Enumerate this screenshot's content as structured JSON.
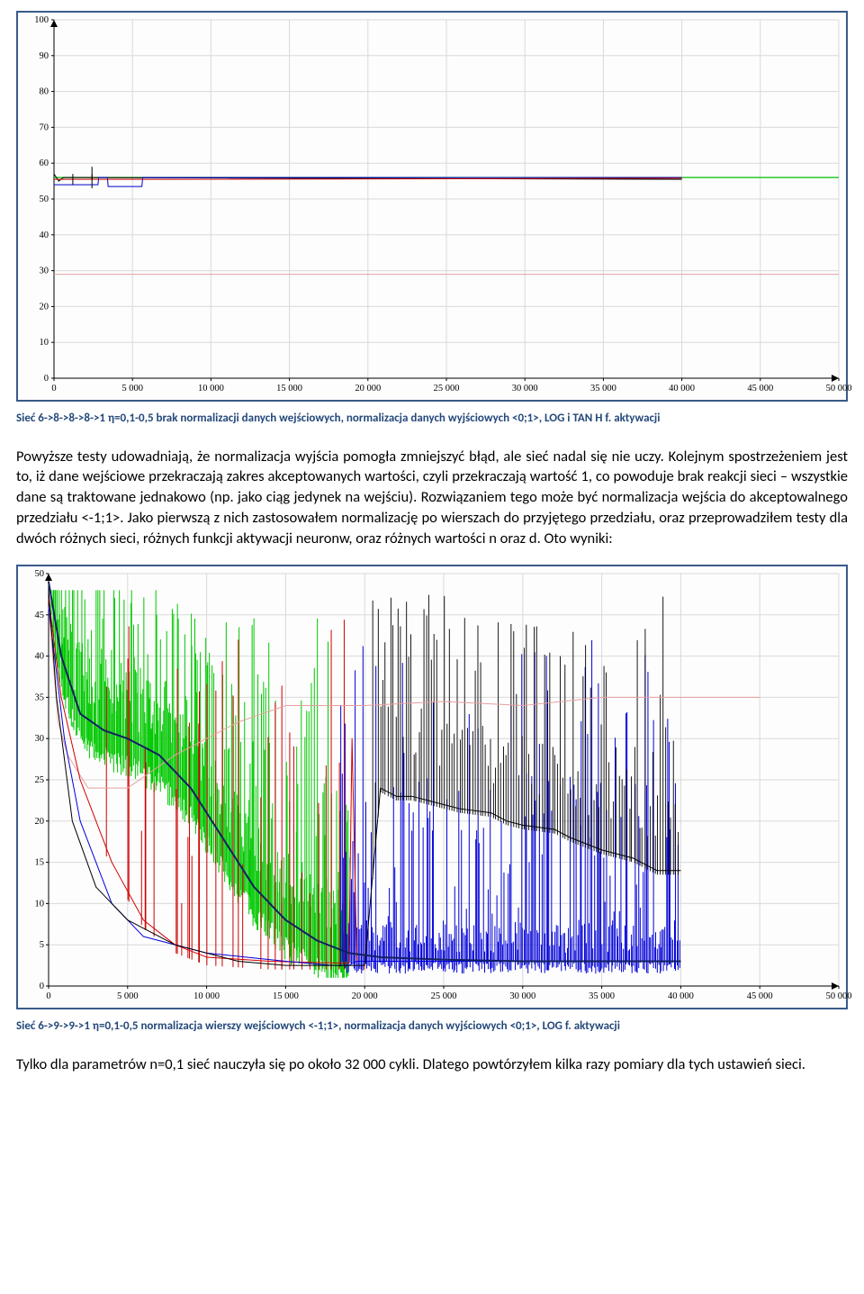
{
  "chart1": {
    "type": "line",
    "xlim": [
      0,
      50000
    ],
    "ylim": [
      0,
      100
    ],
    "xtick_step": 5000,
    "ytick_step": 10,
    "xticks": [
      "0",
      "5 000",
      "10 000",
      "15 000",
      "20 000",
      "25 000",
      "30 000",
      "35 000",
      "40 000",
      "45 000",
      "50 000"
    ],
    "yticks": [
      "0",
      "10",
      "20",
      "30",
      "40",
      "50",
      "60",
      "70",
      "80",
      "90",
      "100"
    ],
    "background_color": "#ffffff",
    "grid_color": "#d9d9d9",
    "axis_color": "#000000",
    "label_fontsize": 10.5,
    "series": [
      {
        "name": "green-main",
        "color": "#00c000",
        "width": 1.2,
        "points": [
          [
            0,
            56
          ],
          [
            50000,
            56
          ]
        ]
      },
      {
        "name": "black",
        "color": "#000000",
        "width": 1,
        "points": [
          [
            0,
            57
          ],
          [
            300,
            55
          ],
          [
            600,
            56
          ],
          [
            1800,
            56
          ],
          [
            40000,
            55.5
          ]
        ]
      },
      {
        "name": "blue",
        "color": "#0000d0",
        "width": 1,
        "points": [
          [
            0,
            54
          ],
          [
            2800,
            54
          ],
          [
            2850,
            56
          ],
          [
            3400,
            56
          ],
          [
            3450,
            53.5
          ],
          [
            5600,
            53.5
          ],
          [
            5650,
            56
          ],
          [
            40000,
            56
          ]
        ]
      },
      {
        "name": "red",
        "color": "#d00000",
        "width": 1,
        "points": [
          [
            0,
            55.5
          ],
          [
            2400,
            55.5
          ],
          [
            2420,
            57
          ],
          [
            2440,
            55.5
          ],
          [
            8000,
            55.5
          ],
          [
            40000,
            55.8
          ]
        ]
      },
      {
        "name": "pink-low",
        "color": "#e8a0a0",
        "width": 1,
        "points": [
          [
            0,
            29
          ],
          [
            50000,
            29
          ]
        ]
      },
      {
        "name": "vbar1",
        "color": "#000000",
        "width": 1,
        "points": [
          [
            2420,
            53
          ],
          [
            2420,
            59
          ]
        ]
      },
      {
        "name": "vbar2",
        "color": "#000000",
        "width": 1,
        "points": [
          [
            1200,
            54
          ],
          [
            1200,
            57
          ]
        ]
      }
    ]
  },
  "caption1": "Sieć 6->8->8->8->1    η=0,1-0,5 brak normalizacji danych wejściowych, normalizacja danych wyjściowych <0;1>, LOG i TAN H f. aktywacji",
  "para1": "Powyższe testy udowadniają, że normalizacja wyjścia pomogła zmniejszyć błąd, ale sieć nadal się nie uczy. Kolejnym spostrzeżeniem jest to, iż dane wejściowe przekraczają zakres akceptowanych wartości, czyli przekraczają wartość 1, co powoduje brak reakcji sieci – wszystkie dane są traktowane jednakowo (np. jako ciąg jedynek na wejściu). Rozwiązaniem tego może być normalizacja wejścia do akceptowalnego przedziału <-1;1>. Jako pierwszą z nich zastosowałem normalizację po wierszach do przyjętego przedziału, oraz przeprowadziłem testy dla dwóch różnych sieci, różnych funkcji aktywacji neuronw, oraz różnych wartości n oraz d. Oto wyniki:",
  "chart2": {
    "type": "line",
    "xlim": [
      0,
      50000
    ],
    "ylim": [
      0,
      50
    ],
    "xtick_step": 5000,
    "ytick_step": 5,
    "xticks": [
      "0",
      "5 000",
      "10 000",
      "15 000",
      "20 000",
      "25 000",
      "30 000",
      "35 000",
      "40 000",
      "45 000",
      "50 000"
    ],
    "yticks": [
      "0",
      "5",
      "10",
      "15",
      "20",
      "25",
      "30",
      "35",
      "40",
      "45",
      "50"
    ],
    "background_color": "#ffffff",
    "grid_color": "#d9d9d9",
    "axis_color": "#000000",
    "label_fontsize": 10.5,
    "series_colors": {
      "green": "#00c800",
      "blue": "#0000d8",
      "black": "#000000",
      "red": "#d00000",
      "pink": "#e8a0a0",
      "navy": "#102060"
    },
    "pink_series": {
      "color": "#e8a0a0",
      "width": 1,
      "points": [
        [
          0,
          46
        ],
        [
          600,
          32
        ],
        [
          1200,
          28
        ],
        [
          2500,
          24
        ],
        [
          5000,
          24
        ],
        [
          8000,
          28
        ],
        [
          12000,
          32
        ],
        [
          15000,
          34
        ],
        [
          20000,
          34
        ],
        [
          25000,
          34.5
        ],
        [
          30000,
          34
        ],
        [
          35000,
          35
        ],
        [
          38000,
          35
        ],
        [
          40000,
          35
        ],
        [
          45000,
          35
        ]
      ]
    },
    "black_base": {
      "color": "#000000",
      "width": 1,
      "points": [
        [
          0,
          48
        ],
        [
          500,
          35
        ],
        [
          1500,
          20
        ],
        [
          3000,
          12
        ],
        [
          5000,
          8
        ],
        [
          8000,
          5
        ],
        [
          12000,
          3
        ],
        [
          15000,
          2.5
        ],
        [
          18000,
          2.5
        ],
        [
          20000,
          2.5
        ],
        [
          21000,
          24
        ],
        [
          22000,
          23
        ],
        [
          23000,
          23
        ],
        [
          25000,
          22
        ],
        [
          26000,
          21.5
        ],
        [
          28000,
          21
        ],
        [
          29000,
          20
        ],
        [
          30000,
          19.5
        ],
        [
          32000,
          19
        ],
        [
          33000,
          18
        ],
        [
          35000,
          16.5
        ],
        [
          37000,
          15.5
        ],
        [
          38500,
          14
        ],
        [
          40000,
          14
        ]
      ]
    },
    "navy_base": {
      "color": "#102060",
      "width": 2,
      "points": [
        [
          0,
          49
        ],
        [
          800,
          40
        ],
        [
          2000,
          33
        ],
        [
          3500,
          31
        ],
        [
          5000,
          30
        ],
        [
          7000,
          28
        ],
        [
          9000,
          24
        ],
        [
          11000,
          18
        ],
        [
          13000,
          12
        ],
        [
          15000,
          8
        ],
        [
          17000,
          5.5
        ],
        [
          19000,
          4
        ],
        [
          21000,
          3.5
        ],
        [
          25000,
          3.2
        ],
        [
          30000,
          3
        ],
        [
          35000,
          3
        ],
        [
          40000,
          3
        ]
      ]
    },
    "blue_base": {
      "color": "#0000d8",
      "width": 1,
      "points": [
        [
          0,
          46
        ],
        [
          1000,
          30
        ],
        [
          2000,
          20
        ],
        [
          4000,
          10
        ],
        [
          6000,
          6
        ],
        [
          10000,
          4
        ],
        [
          15000,
          3
        ],
        [
          18000,
          2.5
        ],
        [
          19000,
          2.5
        ],
        [
          19500,
          3
        ],
        [
          21000,
          3
        ],
        [
          25000,
          3
        ],
        [
          30000,
          3
        ],
        [
          32000,
          3
        ],
        [
          35000,
          3
        ],
        [
          38000,
          3
        ],
        [
          40000,
          3
        ]
      ]
    },
    "red_base": {
      "color": "#d00000",
      "width": 1,
      "points": [
        [
          0,
          47
        ],
        [
          800,
          35
        ],
        [
          2000,
          25
        ],
        [
          4000,
          15
        ],
        [
          6000,
          8
        ],
        [
          8000,
          5
        ],
        [
          10000,
          3.5
        ],
        [
          14000,
          3
        ],
        [
          18000,
          2.8
        ],
        [
          19000,
          2.8
        ],
        [
          19200,
          30
        ],
        [
          19500,
          3
        ],
        [
          21000,
          3
        ]
      ]
    },
    "green_noise": {
      "color": "#00c800",
      "xstart": 200,
      "xend": 19000,
      "density": 320,
      "base_from": "navy",
      "spike_min": 0.3,
      "spike_max": 45
    },
    "blue_noise": {
      "color": "#0000d8",
      "xstart": 18500,
      "xend": 40000,
      "density": 260,
      "base_level": 3,
      "spike_min": 0.3,
      "spike_max": 42
    },
    "black_noise": {
      "color": "#000000",
      "xstart": 20500,
      "xend": 40000,
      "density": 120,
      "base_from": "black_step",
      "spike_min": 0.3,
      "spike_max": 48
    },
    "red_noise": {
      "color": "#d00000",
      "xstart": 2000,
      "xend": 20000,
      "density": 40,
      "spike_min": 5,
      "spike_max": 45
    }
  },
  "caption2": "Sieć 6->9->9->1    η=0,1-0,5 normalizacja wierszy wejściowych <-1;1>, normalizacja danych wyjściowych <0;1>, LOG f. aktywacji",
  "para2": "Tylko dla parametrów n=0,1 sieć nauczyła się po około 32 000 cykli. Dlatego powtórzyłem kilka razy pomiary dla tych ustawień sieci."
}
